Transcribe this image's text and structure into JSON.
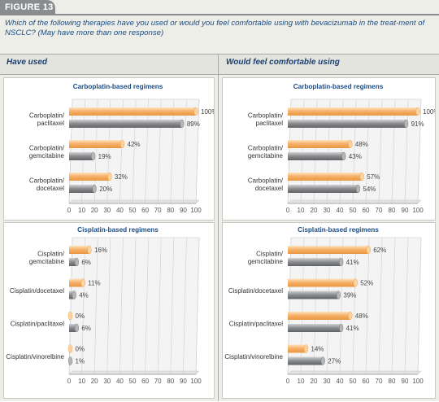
{
  "figure": {
    "tab_label": "FIGURE 13",
    "question": "Which of the following therapies have you used or would you feel comfortable using with bevacizumab in the treat-ment of NSCLC? (May have more than one response)",
    "col_left_header": "Have used",
    "col_right_header": "Would feel comfortable using"
  },
  "colors": {
    "orange_bar": "#f7b26b",
    "gray_bar": "#8e9093",
    "title_blue": "#1a4c86"
  },
  "chart_data": [
    {
      "type": "bar",
      "orientation": "horizontal",
      "title": "Carboplatin-based regimens",
      "categories": [
        "Carboplatin/\npaclitaxel",
        "Carboplatin/\ngemcitabine",
        "Carboplatin/\ndocetaxel"
      ],
      "series": [
        {
          "values": [
            100,
            42,
            32
          ]
        },
        {
          "values": [
            89,
            19,
            20
          ]
        }
      ],
      "data_labels": [
        [
          "100%",
          "42%",
          "32%"
        ],
        [
          "89%",
          "19%",
          "20%"
        ]
      ],
      "xlim": [
        0,
        100
      ],
      "xticks": [
        "0",
        "10",
        "20",
        "30",
        "40",
        "50",
        "60",
        "70",
        "80",
        "90",
        "100"
      ]
    },
    {
      "type": "bar",
      "orientation": "horizontal",
      "title": "Carboplatin-based regimens",
      "categories": [
        "Carboplatin/\npaclitaxel",
        "Carboplatin/\ngemcitabine",
        "Carboplatin/\ndocetaxel"
      ],
      "series": [
        {
          "values": [
            100,
            48,
            57
          ]
        },
        {
          "values": [
            91,
            43,
            54
          ]
        }
      ],
      "data_labels": [
        [
          "100%",
          "48%",
          "57%"
        ],
        [
          "91%",
          "43%",
          "54%"
        ]
      ],
      "xlim": [
        0,
        100
      ],
      "xticks": [
        "0",
        "10",
        "20",
        "30",
        "40",
        "50",
        "60",
        "70",
        "80",
        "90",
        "100"
      ]
    },
    {
      "type": "bar",
      "orientation": "horizontal",
      "title": "Cisplatin-based regimens",
      "categories": [
        "Cisplatin/\ngemcitabine",
        "Cisplatin/docetaxel",
        "Cisplatin/paclitaxel",
        "Cisplatin/vinorelbine"
      ],
      "series": [
        {
          "values": [
            16,
            11,
            0,
            0
          ]
        },
        {
          "values": [
            6,
            4,
            6,
            1
          ]
        }
      ],
      "data_labels": [
        [
          "16%",
          "11%",
          "0%",
          "0%"
        ],
        [
          "6%",
          "4%",
          "6%",
          "1%"
        ]
      ],
      "xlim": [
        0,
        100
      ],
      "xticks": [
        "0",
        "10",
        "20",
        "30",
        "40",
        "50",
        "60",
        "70",
        "80",
        "90",
        "100"
      ]
    },
    {
      "type": "bar",
      "orientation": "horizontal",
      "title": "Cisplatin-based regimens",
      "categories": [
        "Cisplatin/\ngemcitabine",
        "Cisplatin/docetaxel",
        "Cisplatin/paclitaxel",
        "Cisplatin/vinorelbine"
      ],
      "series": [
        {
          "values": [
            62,
            52,
            48,
            14
          ]
        },
        {
          "values": [
            41,
            39,
            41,
            27
          ]
        }
      ],
      "data_labels": [
        [
          "62%",
          "52%",
          "48%",
          "14%"
        ],
        [
          "41%",
          "39%",
          "41%",
          "27%"
        ]
      ],
      "xlim": [
        0,
        100
      ],
      "xticks": [
        "0",
        "10",
        "20",
        "30",
        "40",
        "50",
        "60",
        "70",
        "80",
        "90",
        "100"
      ]
    }
  ]
}
